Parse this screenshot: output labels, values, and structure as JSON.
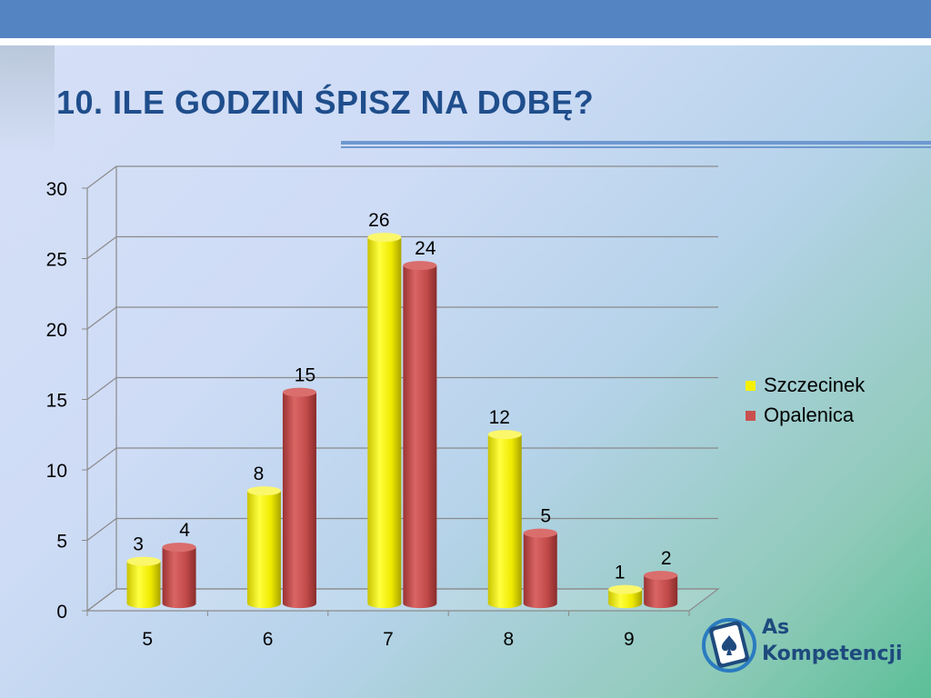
{
  "slide": {
    "title": "10. ILE GODZIN ŚPISZ NA DOBĘ?"
  },
  "colors": {
    "header_band": "#5484c2",
    "title": "#1f4e8c",
    "series_1": "#f5f000",
    "series_2": "#c9504f"
  },
  "chart_data": {
    "type": "bar",
    "title": "",
    "xlabel": "",
    "ylabel": "",
    "categories": [
      "5",
      "6",
      "7",
      "8",
      "9"
    ],
    "series": [
      {
        "name": "Szczecinek",
        "values": [
          3,
          8,
          26,
          12,
          1
        ]
      },
      {
        "name": "Opalenica",
        "values": [
          4,
          15,
          24,
          5,
          2
        ]
      }
    ],
    "ylim": [
      0,
      30
    ],
    "yticks": [
      "0",
      "5",
      "10",
      "15",
      "20",
      "25",
      "30"
    ],
    "grid": true,
    "legend": "right",
    "style": "3d-cylinder"
  },
  "logo": {
    "line1": "As",
    "line2": "Kompetencji"
  }
}
